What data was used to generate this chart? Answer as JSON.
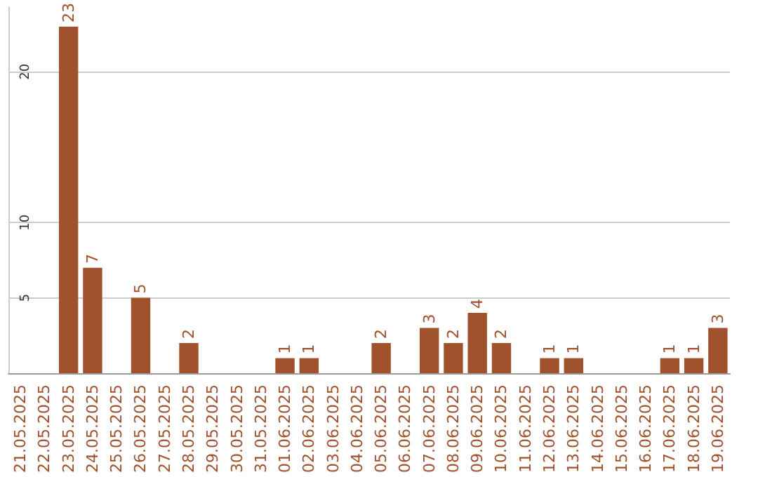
{
  "chart_data": {
    "type": "bar",
    "categories": [
      "21.05.2025",
      "22.05.2025",
      "23.05.2025",
      "24.05.2025",
      "25.05.2025",
      "26.05.2025",
      "27.05.2025",
      "28.05.2025",
      "29.05.2025",
      "30.05.2025",
      "31.05.2025",
      "01.06.2025",
      "02.06.2025",
      "03.06.2025",
      "04.06.2025",
      "05.06.2025",
      "06.06.2025",
      "07.06.2025",
      "08.06.2025",
      "09.06.2025",
      "10.06.2025",
      "11.06.2025",
      "12.06.2025",
      "13.06.2025",
      "14.06.2025",
      "15.06.2025",
      "16.06.2025",
      "17.06.2025",
      "18.06.2025",
      "19.06.2025"
    ],
    "values": [
      0,
      0,
      23,
      7,
      0,
      5,
      0,
      2,
      0,
      0,
      0,
      1,
      1,
      0,
      0,
      2,
      0,
      3,
      2,
      4,
      2,
      0,
      1,
      1,
      0,
      0,
      0,
      1,
      1,
      3
    ],
    "value_labels": [
      null,
      null,
      "23",
      "7",
      null,
      "5",
      null,
      "2",
      null,
      null,
      null,
      "1",
      "1",
      null,
      null,
      "2",
      null,
      "3",
      "2",
      "4",
      "2",
      null,
      "1",
      "1",
      null,
      null,
      null,
      "1",
      "1",
      "3"
    ],
    "color": "#a0522d",
    "ylim": [
      0,
      24.3
    ],
    "yticks": [
      5,
      10,
      20
    ],
    "grid": "y"
  }
}
